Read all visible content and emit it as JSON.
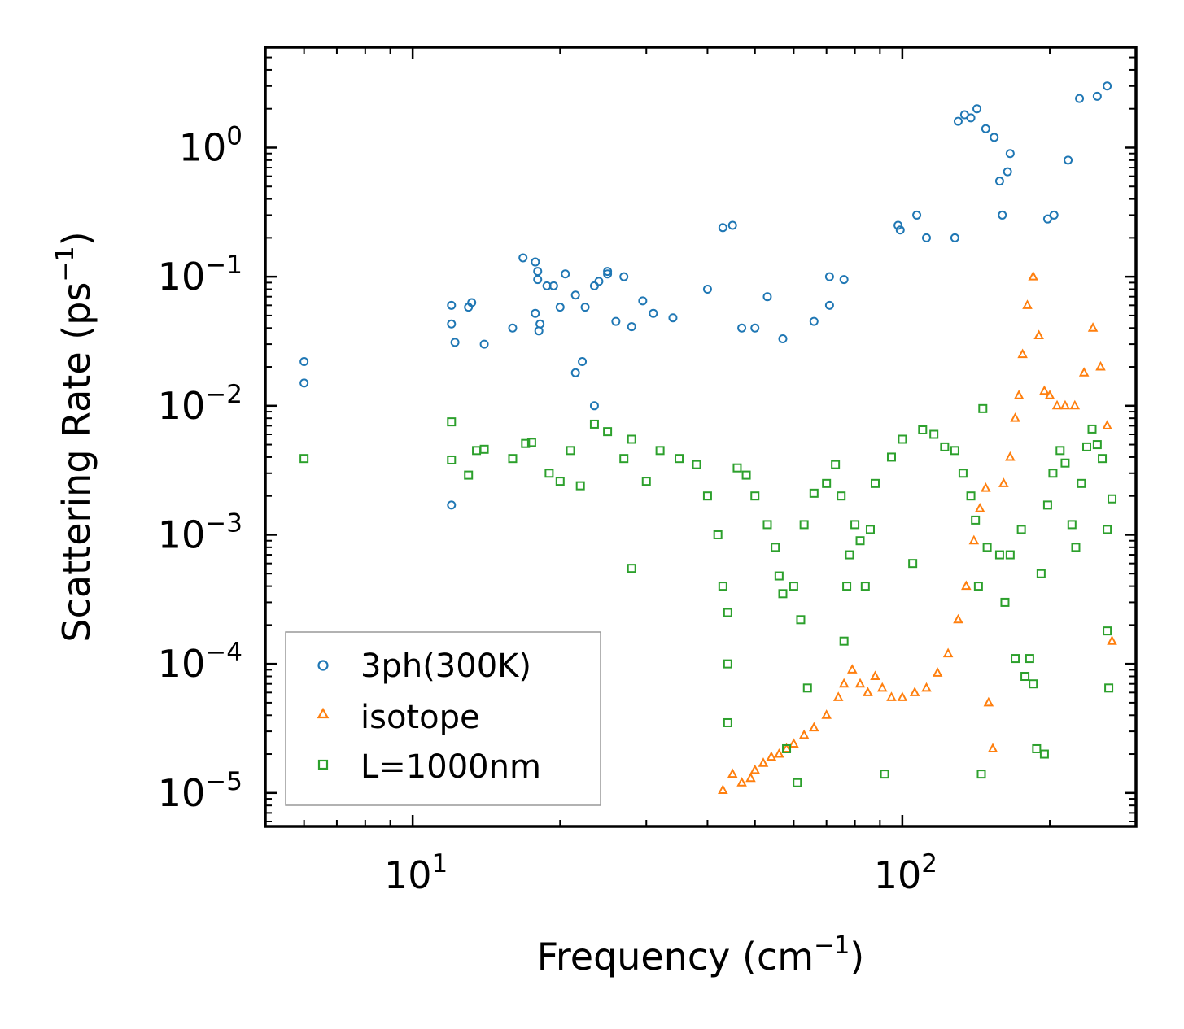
{
  "chart_data": {
    "type": "scatter",
    "xscale": "log",
    "yscale": "log",
    "xlim": [
      5,
      300
    ],
    "ylim": [
      5.5e-06,
      6
    ],
    "xlabel": "Frequency (cm",
    "xlabel_sup": "−1",
    "xlabel_end": ")",
    "ylabel": "Scattering Rate (ps",
    "ylabel_sup": "−1",
    "ylabel_end": ")",
    "x_ticks": [
      {
        "value": 10,
        "base": "10",
        "exp": "1"
      },
      {
        "value": 100,
        "base": "10",
        "exp": "2"
      }
    ],
    "y_ticks": [
      {
        "value": 1,
        "base": "10",
        "exp": "0"
      },
      {
        "value": 0.1,
        "base": "10",
        "exp": "−1"
      },
      {
        "value": 0.01,
        "base": "10",
        "exp": "−2"
      },
      {
        "value": 0.001,
        "base": "10",
        "exp": "−3"
      },
      {
        "value": 0.0001,
        "base": "10",
        "exp": "−4"
      },
      {
        "value": 1e-05,
        "base": "10",
        "exp": "−5"
      }
    ],
    "legend": {
      "placement": "lower-left"
    },
    "series": [
      {
        "name": "3ph(300K)",
        "marker": "circle",
        "color": "#1f77b4",
        "points": [
          [
            6,
            0.022
          ],
          [
            6,
            0.015
          ],
          [
            12,
            0.06
          ],
          [
            12,
            0.043
          ],
          [
            12.2,
            0.031
          ],
          [
            12,
            0.0017
          ],
          [
            13,
            0.058
          ],
          [
            13.2,
            0.063
          ],
          [
            14,
            0.03
          ],
          [
            16,
            0.04
          ],
          [
            16.8,
            0.14
          ],
          [
            17.8,
            0.13
          ],
          [
            18,
            0.11
          ],
          [
            18,
            0.095
          ],
          [
            17.8,
            0.052
          ],
          [
            18.2,
            0.043
          ],
          [
            18.1,
            0.038
          ],
          [
            18.8,
            0.085
          ],
          [
            19.4,
            0.085
          ],
          [
            20,
            0.058
          ],
          [
            20.5,
            0.105
          ],
          [
            21.5,
            0.072
          ],
          [
            21.5,
            0.018
          ],
          [
            22.2,
            0.022
          ],
          [
            22.5,
            0.058
          ],
          [
            23.5,
            0.085
          ],
          [
            23.5,
            0.01
          ],
          [
            24,
            0.092
          ],
          [
            25,
            0.11
          ],
          [
            25,
            0.105
          ],
          [
            26,
            0.045
          ],
          [
            27,
            0.1
          ],
          [
            28,
            0.041
          ],
          [
            29.5,
            0.065
          ],
          [
            31,
            0.052
          ],
          [
            34,
            0.048
          ],
          [
            40,
            0.08
          ],
          [
            43,
            0.24
          ],
          [
            45,
            0.25
          ],
          [
            47,
            0.04
          ],
          [
            50,
            0.04
          ],
          [
            53,
            0.07
          ],
          [
            57,
            0.033
          ],
          [
            66,
            0.045
          ],
          [
            71,
            0.06
          ],
          [
            71,
            0.1
          ],
          [
            76,
            0.095
          ],
          [
            98,
            0.25
          ],
          [
            99,
            0.23
          ],
          [
            107,
            0.3
          ],
          [
            112,
            0.2
          ],
          [
            128,
            0.2
          ],
          [
            130,
            1.6
          ],
          [
            134,
            1.8
          ],
          [
            138,
            1.7
          ],
          [
            142,
            2.0
          ],
          [
            148,
            1.4
          ],
          [
            154,
            1.2
          ],
          [
            158,
            0.55
          ],
          [
            160,
            0.3
          ],
          [
            164,
            0.65
          ],
          [
            166,
            0.9
          ],
          [
            198,
            0.28
          ],
          [
            204,
            0.3
          ],
          [
            218,
            0.8
          ],
          [
            230,
            2.4
          ],
          [
            250,
            2.5
          ],
          [
            262,
            3.0
          ]
        ]
      },
      {
        "name": "isotope",
        "marker": "triangle",
        "color": "#ff7f0e",
        "points": [
          [
            43,
            1.05e-05
          ],
          [
            45,
            1.4e-05
          ],
          [
            47,
            1.2e-05
          ],
          [
            49,
            1.3e-05
          ],
          [
            50,
            1.5e-05
          ],
          [
            52,
            1.7e-05
          ],
          [
            54,
            1.9e-05
          ],
          [
            56,
            2e-05
          ],
          [
            58,
            2.2e-05
          ],
          [
            60,
            2.4e-05
          ],
          [
            63,
            2.8e-05
          ],
          [
            66,
            3.2e-05
          ],
          [
            70,
            4e-05
          ],
          [
            74,
            5.5e-05
          ],
          [
            76,
            7e-05
          ],
          [
            79,
            9e-05
          ],
          [
            82,
            7e-05
          ],
          [
            85,
            6e-05
          ],
          [
            88,
            8e-05
          ],
          [
            91,
            6.5e-05
          ],
          [
            95,
            5.5e-05
          ],
          [
            100,
            5.5e-05
          ],
          [
            106,
            6e-05
          ],
          [
            112,
            6.5e-05
          ],
          [
            118,
            8.5e-05
          ],
          [
            124,
            0.00012
          ],
          [
            130,
            0.00022
          ],
          [
            135,
            0.0004
          ],
          [
            140,
            0.0009
          ],
          [
            144,
            0.0016
          ],
          [
            148,
            0.0023
          ],
          [
            150,
            5e-05
          ],
          [
            153,
            2.2e-05
          ],
          [
            161,
            0.0025
          ],
          [
            166,
            0.004
          ],
          [
            170,
            0.008
          ],
          [
            173,
            0.012
          ],
          [
            176,
            0.025
          ],
          [
            180,
            0.06
          ],
          [
            185,
            0.1
          ],
          [
            190,
            0.035
          ],
          [
            195,
            0.013
          ],
          [
            200,
            0.012
          ],
          [
            207,
            0.01
          ],
          [
            215,
            0.01
          ],
          [
            225,
            0.01
          ],
          [
            235,
            0.018
          ],
          [
            245,
            0.04
          ],
          [
            254,
            0.02
          ],
          [
            262,
            0.007
          ],
          [
            268,
            0.00015
          ]
        ]
      },
      {
        "name": "L=1000nm",
        "marker": "square",
        "color": "#2ca02c",
        "points": [
          [
            6,
            0.0039
          ],
          [
            12,
            0.0038
          ],
          [
            12,
            0.0075
          ],
          [
            13,
            0.0029
          ],
          [
            13.5,
            0.0045
          ],
          [
            14,
            0.0046
          ],
          [
            16,
            0.0039
          ],
          [
            17,
            0.0051
          ],
          [
            17.5,
            0.0052
          ],
          [
            19,
            0.003
          ],
          [
            20,
            0.0026
          ],
          [
            21,
            0.0045
          ],
          [
            22,
            0.0024
          ],
          [
            23.5,
            0.0072
          ],
          [
            25,
            0.0063
          ],
          [
            27,
            0.0039
          ],
          [
            28,
            0.0055
          ],
          [
            28,
            0.00055
          ],
          [
            30,
            0.0026
          ],
          [
            32,
            0.0045
          ],
          [
            35,
            0.0039
          ],
          [
            38,
            0.0035
          ],
          [
            40,
            0.002
          ],
          [
            42,
            0.001
          ],
          [
            43,
            0.0004
          ],
          [
            44,
            0.00025
          ],
          [
            44,
            0.0001
          ],
          [
            44,
            3.5e-05
          ],
          [
            46,
            0.0033
          ],
          [
            48,
            0.0029
          ],
          [
            50,
            0.002
          ],
          [
            53,
            0.0012
          ],
          [
            55,
            0.0008
          ],
          [
            56,
            0.00048
          ],
          [
            57,
            0.00035
          ],
          [
            58,
            2.2e-05
          ],
          [
            60,
            0.0004
          ],
          [
            61,
            1.2e-05
          ],
          [
            62,
            0.00022
          ],
          [
            63,
            0.0012
          ],
          [
            64,
            6.5e-05
          ],
          [
            66,
            0.0021
          ],
          [
            70,
            0.0025
          ],
          [
            73,
            0.0035
          ],
          [
            75,
            0.002
          ],
          [
            76,
            0.00015
          ],
          [
            77,
            0.0004
          ],
          [
            78,
            0.0007
          ],
          [
            80,
            0.0012
          ],
          [
            82,
            0.0009
          ],
          [
            84,
            0.0004
          ],
          [
            86,
            0.0011
          ],
          [
            88,
            0.0025
          ],
          [
            92,
            1.4e-05
          ],
          [
            95,
            0.004
          ],
          [
            100,
            0.0055
          ],
          [
            105,
            0.0006
          ],
          [
            110,
            0.0065
          ],
          [
            116,
            0.006
          ],
          [
            122,
            0.0048
          ],
          [
            128,
            0.0045
          ],
          [
            133,
            0.003
          ],
          [
            138,
            0.002
          ],
          [
            141,
            0.0013
          ],
          [
            143,
            0.0004
          ],
          [
            145,
            1.4e-05
          ],
          [
            146,
            0.0095
          ],
          [
            149,
            0.0008
          ],
          [
            158,
            0.0007
          ],
          [
            162,
            0.0003
          ],
          [
            166,
            0.0007
          ],
          [
            170,
            0.00011
          ],
          [
            175,
            0.0011
          ],
          [
            178,
            8e-05
          ],
          [
            182,
            0.00011
          ],
          [
            185,
            7e-05
          ],
          [
            188,
            2.2e-05
          ],
          [
            192,
            0.0005
          ],
          [
            195,
            2e-05
          ],
          [
            198,
            0.0017
          ],
          [
            203,
            0.003
          ],
          [
            210,
            0.0045
          ],
          [
            215,
            0.0036
          ],
          [
            222,
            0.0012
          ],
          [
            226,
            0.0008
          ],
          [
            232,
            0.0025
          ],
          [
            238,
            0.0048
          ],
          [
            244,
            0.0066
          ],
          [
            250,
            0.005
          ],
          [
            256,
            0.0039
          ],
          [
            262,
            0.0011
          ],
          [
            262,
            0.00018
          ],
          [
            264,
            6.5e-05
          ],
          [
            268,
            0.0019
          ]
        ]
      }
    ]
  }
}
